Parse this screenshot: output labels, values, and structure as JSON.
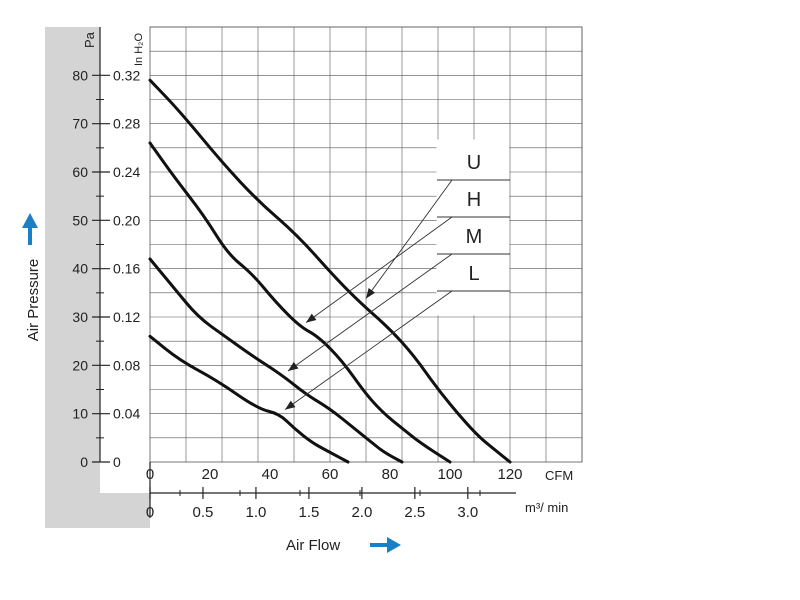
{
  "chart_data": {
    "type": "line",
    "title": "",
    "xlabel": "Air Flow",
    "ylabel": "Air Pressure",
    "x_unit_primary": "CFM",
    "x_unit_secondary": "m³/ min",
    "y_unit_primary": "Pa",
    "y_unit_secondary": "In H₂O",
    "xlim": [
      0,
      144
    ],
    "ylim": [
      0,
      90
    ],
    "x_ticks_cfm": [
      "0",
      "20",
      "40",
      "60",
      "80",
      "100",
      "120"
    ],
    "x_ticks_m3": [
      "0",
      "0.5",
      "1.0",
      "1.5",
      "2.0",
      "2.5",
      "3.0"
    ],
    "y_ticks_pa": [
      "0",
      "10",
      "20",
      "30",
      "40",
      "50",
      "60",
      "70",
      "80"
    ],
    "y_ticks_inh2o": [
      "0",
      "0.04",
      "0.08",
      "0.12",
      "0.16",
      "0.20",
      "0.24",
      "0.28",
      "0.32"
    ],
    "grid": true,
    "legend_position": "right",
    "arrow_color": "#1a7fc4",
    "series": [
      {
        "name": "U",
        "x": [
          0,
          10,
          24,
          36,
          49,
          62,
          70,
          80,
          88,
          96,
          104,
          110,
          116,
          120
        ],
        "y": [
          79,
          72.5,
          62,
          54,
          47,
          38,
          33,
          27.5,
          22,
          15,
          9,
          5,
          2,
          0
        ]
      },
      {
        "name": "H",
        "x": [
          0,
          8,
          18,
          26,
          34,
          42,
          50,
          56,
          64,
          72,
          78,
          84,
          90,
          100
        ],
        "y": [
          66,
          59,
          51,
          43,
          39,
          33,
          28,
          26,
          21,
          14,
          10,
          7,
          4,
          0
        ]
      },
      {
        "name": "M",
        "x": [
          0,
          8,
          16,
          25,
          34,
          44,
          52,
          60,
          68,
          74,
          78,
          84
        ],
        "y": [
          42,
          36,
          30,
          26,
          22,
          18,
          14,
          11,
          7,
          4,
          2,
          0
        ]
      },
      {
        "name": "L",
        "x": [
          0,
          10,
          22,
          36,
          43,
          48,
          54,
          60,
          66
        ],
        "y": [
          26,
          21,
          17,
          11,
          10,
          7,
          4,
          2,
          0
        ]
      }
    ]
  }
}
